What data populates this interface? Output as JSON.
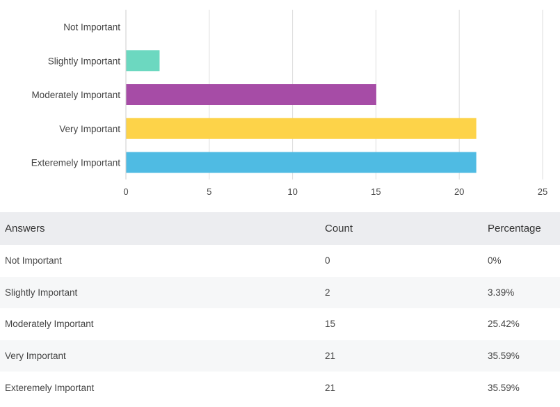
{
  "chart_data": {
    "type": "bar",
    "orientation": "horizontal",
    "categories": [
      "Not Important",
      "Slightly Important",
      "Moderately Important",
      "Very Important",
      "Exteremely Important"
    ],
    "values": [
      0,
      2,
      15,
      21,
      21
    ],
    "colors": [
      "#6cd8c0",
      "#6cd8c0",
      "#a64ca6",
      "#fdd349",
      "#4fbbe3"
    ],
    "xticks": [
      0,
      5,
      10,
      15,
      20,
      25
    ],
    "xlim": [
      0,
      25
    ],
    "title": "",
    "xlabel": "",
    "ylabel": "",
    "grid": true
  },
  "table": {
    "headers": {
      "answers": "Answers",
      "count": "Count",
      "percentage": "Percentage"
    },
    "rows": [
      {
        "answer": "Not Important",
        "count": "0",
        "percentage": "0%"
      },
      {
        "answer": "Slightly Important",
        "count": "2",
        "percentage": "3.39%"
      },
      {
        "answer": "Moderately Important",
        "count": "15",
        "percentage": "25.42%"
      },
      {
        "answer": "Very Important",
        "count": "21",
        "percentage": "35.59%"
      },
      {
        "answer": "Exteremely Important",
        "count": "21",
        "percentage": "35.59%"
      }
    ]
  }
}
